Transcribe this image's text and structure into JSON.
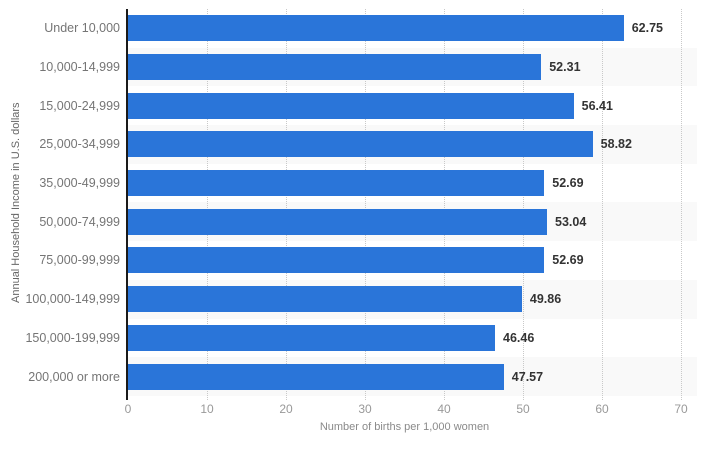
{
  "chart_data": {
    "type": "bar",
    "orientation": "horizontal",
    "title": "",
    "categories": [
      "Under 10,000",
      "10,000-14,999",
      "15,000-24,999",
      "25,000-34,999",
      "35,000-49,999",
      "50,000-74,999",
      "75,000-99,999",
      "100,000-149,999",
      "150,000-199,999",
      "200,000 or more"
    ],
    "values": [
      62.75,
      52.31,
      56.41,
      58.82,
      52.69,
      53.04,
      52.69,
      49.86,
      46.46,
      47.57
    ],
    "value_labels": [
      "62.75",
      "52.31",
      "56.41",
      "58.82",
      "52.69",
      "53.04",
      "52.69",
      "49.86",
      "46.46",
      "47.57"
    ],
    "xlabel": "Number of births per 1,000 women",
    "ylabel": "Annual Household Income in U.S. dollars",
    "xlim": [
      0,
      70
    ],
    "xticks": [
      0,
      10,
      20,
      30,
      40,
      50,
      60,
      70
    ],
    "grid": "vertical-dotted",
    "legend": "none",
    "bar_color": "#2a75d9",
    "row_alt_color": "#f9f9f9",
    "gridline_color": "#c9c9c9",
    "axis_line_color": "#1a1a1a",
    "category_label_color": "#757575",
    "value_label_color": "#333333",
    "tick_label_color": "#999999"
  }
}
